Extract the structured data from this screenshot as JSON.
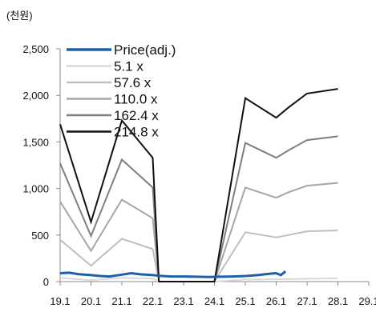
{
  "chart_data": {
    "type": "line",
    "unit_label": "(천원)",
    "ylim": [
      0,
      2500
    ],
    "y_ticks": [
      0,
      500,
      1000,
      1500,
      2000,
      2500
    ],
    "y_tick_labels": [
      "0",
      "500",
      "1,000",
      "1,500",
      "2,000",
      "2,500"
    ],
    "x_categories": [
      "19.1",
      "20.1",
      "21.1",
      "22.1",
      "23.1",
      "24.1",
      "25.1",
      "26.1",
      "27.1",
      "28.1",
      "29.1"
    ],
    "legend_position": "top-left",
    "grid": false,
    "series": [
      {
        "name": "Price(adj.)",
        "color": "#1f5fa8",
        "width": 3,
        "points": [
          [
            0,
            90
          ],
          [
            0.3,
            95
          ],
          [
            0.6,
            80
          ],
          [
            1,
            70
          ],
          [
            1.3,
            60
          ],
          [
            1.6,
            55
          ],
          [
            2,
            75
          ],
          [
            2.3,
            90
          ],
          [
            2.6,
            78
          ],
          [
            3,
            70
          ],
          [
            3.3,
            60
          ],
          [
            3.6,
            55
          ],
          [
            4,
            55
          ],
          [
            4.4,
            52
          ],
          [
            4.8,
            50
          ],
          [
            5.2,
            52
          ],
          [
            5.6,
            55
          ],
          [
            6,
            60
          ],
          [
            6.4,
            70
          ],
          [
            6.8,
            85
          ],
          [
            7,
            90
          ],
          [
            7.15,
            70
          ],
          [
            7.3,
            110
          ]
        ]
      },
      {
        "name": "5.1 x",
        "color": "#d9d9d9",
        "width": 2,
        "points": [
          [
            0,
            40
          ],
          [
            1,
            15
          ],
          [
            2,
            40
          ],
          [
            3,
            32
          ],
          [
            3.2,
            0
          ],
          [
            5,
            0
          ],
          [
            6,
            22
          ],
          [
            7,
            25
          ],
          [
            8,
            30
          ],
          [
            9,
            35
          ]
        ]
      },
      {
        "name": "57.6 x",
        "color": "#bfbfbf",
        "width": 2,
        "points": [
          [
            0,
            450
          ],
          [
            1,
            170
          ],
          [
            2,
            460
          ],
          [
            3,
            350
          ],
          [
            3.2,
            0
          ],
          [
            5,
            0
          ],
          [
            6,
            530
          ],
          [
            7,
            475
          ],
          [
            7.4,
            500
          ],
          [
            8,
            540
          ],
          [
            9,
            550
          ]
        ]
      },
      {
        "name": "110.0 x",
        "color": "#a6a6a6",
        "width": 2,
        "points": [
          [
            0,
            860
          ],
          [
            1,
            330
          ],
          [
            2,
            880
          ],
          [
            3,
            680
          ],
          [
            3.2,
            0
          ],
          [
            5,
            0
          ],
          [
            6,
            1010
          ],
          [
            7,
            900
          ],
          [
            7.4,
            960
          ],
          [
            8,
            1030
          ],
          [
            9,
            1060
          ]
        ]
      },
      {
        "name": "162.4 x",
        "color": "#7f7f7f",
        "width": 2,
        "points": [
          [
            0,
            1270
          ],
          [
            1,
            490
          ],
          [
            2,
            1310
          ],
          [
            3,
            1010
          ],
          [
            3.2,
            0
          ],
          [
            5,
            0
          ],
          [
            6,
            1490
          ],
          [
            7,
            1330
          ],
          [
            7.4,
            1410
          ],
          [
            8,
            1520
          ],
          [
            9,
            1560
          ]
        ]
      },
      {
        "name": "214.8 x",
        "color": "#111111",
        "width": 2,
        "points": [
          [
            0,
            1690
          ],
          [
            1,
            640
          ],
          [
            2,
            1730
          ],
          [
            3,
            1330
          ],
          [
            3.2,
            0
          ],
          [
            5,
            0
          ],
          [
            6,
            1970
          ],
          [
            7,
            1760
          ],
          [
            7.4,
            1870
          ],
          [
            8,
            2020
          ],
          [
            9,
            2070
          ]
        ]
      }
    ]
  }
}
